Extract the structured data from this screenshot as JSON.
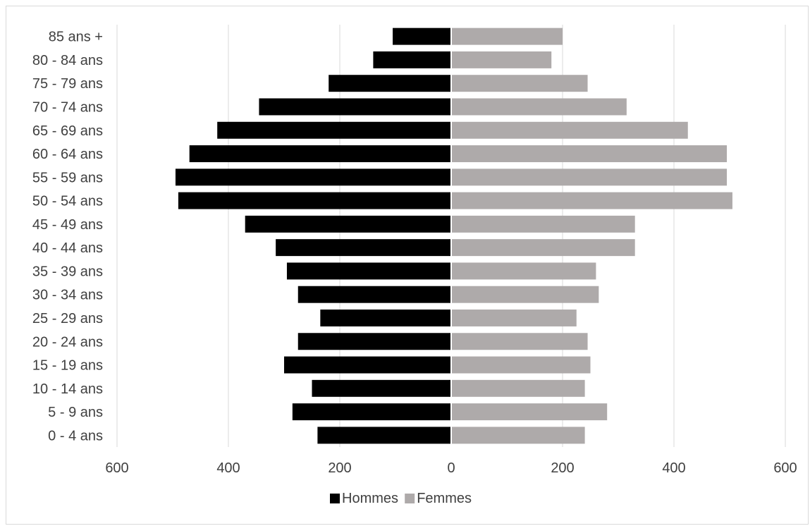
{
  "chart_data": {
    "type": "bar",
    "orientation": "horizontal",
    "layout": "population-pyramid",
    "categories": [
      "0 - 4 ans",
      "5 - 9 ans",
      "10 - 14 ans",
      "15 - 19 ans",
      "20 - 24 ans",
      "25 - 29 ans",
      "30 - 34 ans",
      "35 - 39 ans",
      "40 - 44 ans",
      "45 - 49 ans",
      "50 - 54 ans",
      "55 - 59 ans",
      "60 - 64 ans",
      "65 - 69 ans",
      "70 - 74 ans",
      "75 - 79 ans",
      "80 - 84 ans",
      "85 ans +"
    ],
    "series": [
      {
        "name": "Hommes",
        "color": "#000000",
        "side": "left",
        "values": [
          240,
          285,
          250,
          300,
          275,
          235,
          275,
          295,
          315,
          370,
          490,
          495,
          470,
          420,
          345,
          220,
          140,
          105
        ]
      },
      {
        "name": "Femmes",
        "color": "#aeaaaa",
        "side": "right",
        "values": [
          240,
          280,
          240,
          250,
          245,
          225,
          265,
          260,
          330,
          330,
          505,
          495,
          495,
          425,
          315,
          245,
          180,
          200
        ]
      }
    ],
    "xlim": [
      -600,
      600
    ],
    "xticks": [
      -600,
      -400,
      -200,
      0,
      200,
      400,
      600
    ],
    "xtick_labels": [
      "600",
      "400",
      "200",
      "0",
      "200",
      "400",
      "600"
    ],
    "grid": true,
    "legend_position": "bottom",
    "title": "",
    "xlabel": "",
    "ylabel": ""
  }
}
